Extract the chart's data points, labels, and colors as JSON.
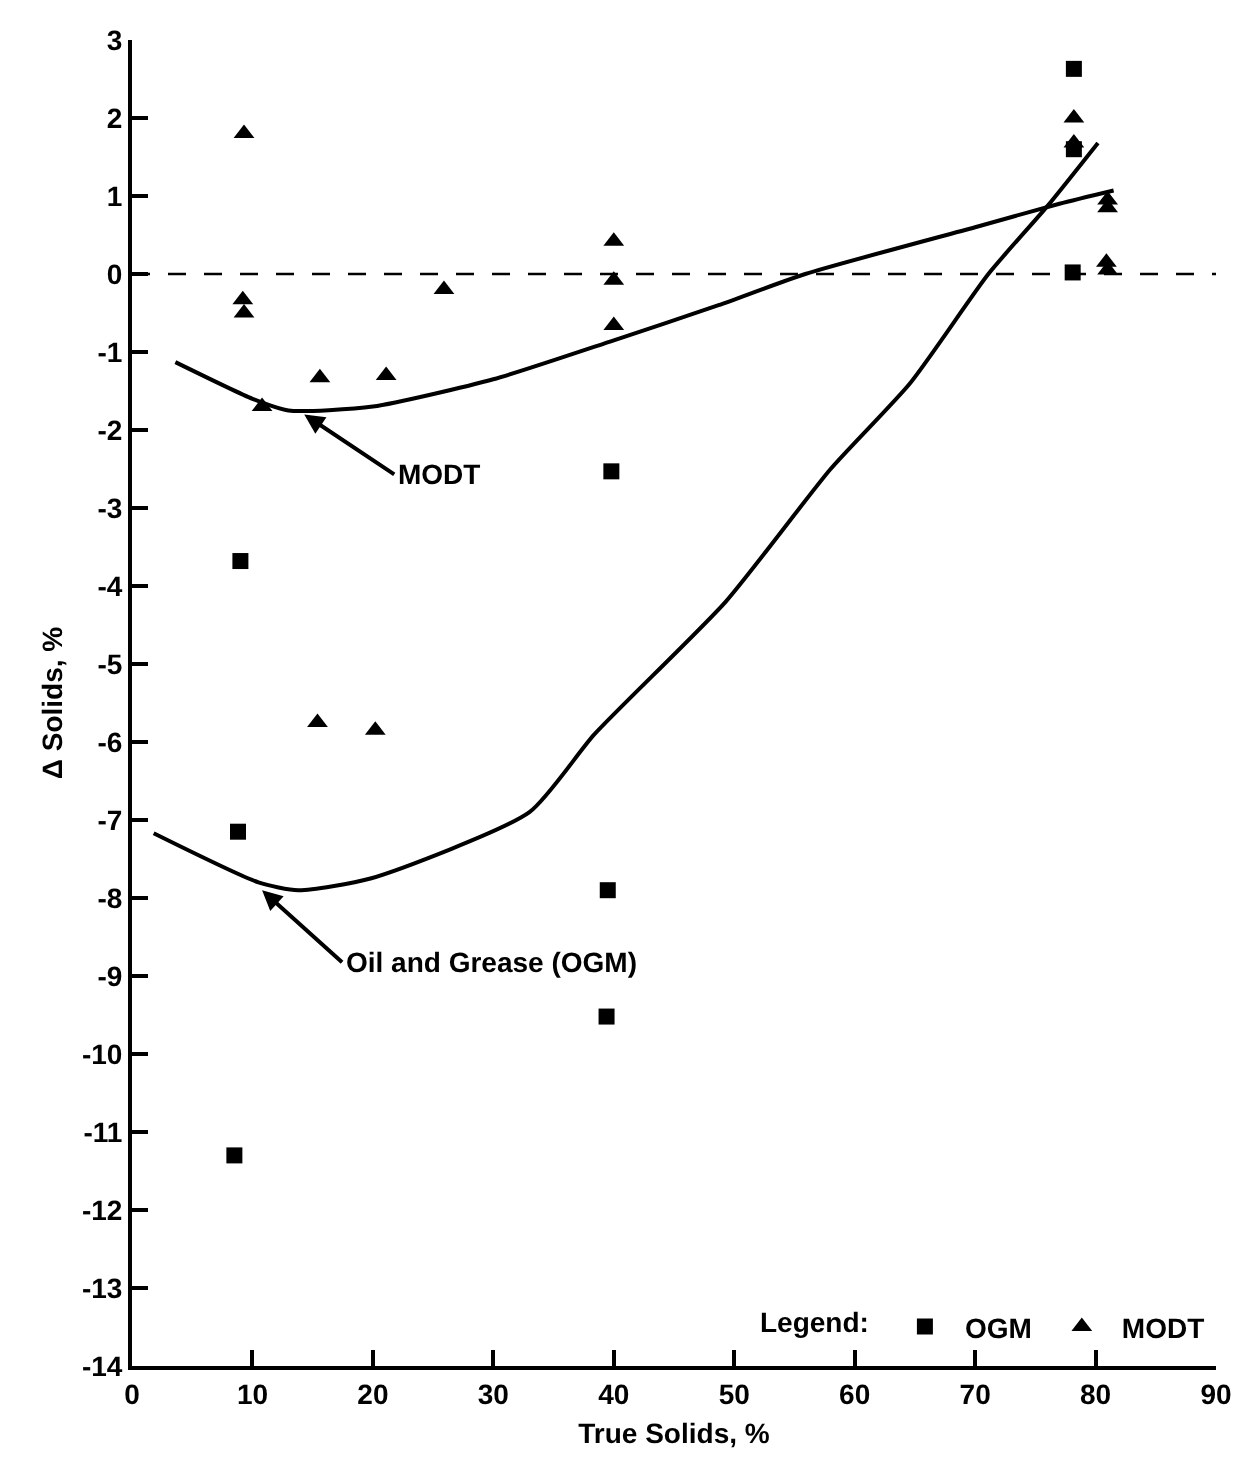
{
  "chart_data": {
    "type": "scatter",
    "xlabel": "True Solids, %",
    "ylabel": "Δ Solids, %",
    "legend_title": "Legend:",
    "legend": "bottom right",
    "grid": false,
    "xlim": [
      0,
      90
    ],
    "xticks": [
      0,
      10,
      20,
      30,
      40,
      50,
      60,
      70,
      80,
      90
    ],
    "ylim": [
      -14,
      3
    ],
    "yticks": [
      3,
      2,
      1,
      0,
      -1,
      -2,
      -3,
      -4,
      -5,
      -6,
      -7,
      -8,
      -9,
      -10,
      -11,
      -12,
      -13,
      -14
    ],
    "series": [
      {
        "name": "OGM",
        "marker": "square",
        "color": "#000000",
        "x": [
          9,
          8.8,
          8.5,
          39.8,
          39.5,
          39.4,
          78.2,
          78.2,
          78.1
        ],
        "values": [
          -3.68,
          -7.15,
          -11.3,
          -2.53,
          -7.9,
          -9.52,
          2.63,
          1.6,
          0.02
        ]
      },
      {
        "name": "MODT",
        "marker": "triangle",
        "color": "#000000",
        "x": [
          9.3,
          9.2,
          9.3,
          10.8,
          15.6,
          21.1,
          25.9,
          40,
          40,
          40,
          15.4,
          20.2,
          78.2,
          78.2,
          81,
          81,
          80.9,
          81
        ],
        "values": [
          1.8,
          -0.33,
          -0.5,
          -1.7,
          -1.33,
          -1.3,
          -0.2,
          0.42,
          -0.08,
          -0.66,
          -5.75,
          -5.85,
          2.0,
          1.68,
          0.95,
          0.85,
          0.15,
          0.05
        ]
      },
      {
        "type": "line",
        "marker": "none",
        "line_style": "solid",
        "color": "#000000",
        "x": [
          3.6,
          10,
          13,
          20,
          30,
          40,
          48.7,
          55.9,
          70,
          77,
          81.5
        ],
        "values": [
          -1.13,
          -1.6,
          -1.75,
          -1.7,
          -1.35,
          -0.85,
          -0.4,
          0,
          0.6,
          0.9,
          1.07
        ]
      },
      {
        "type": "line",
        "marker": "none",
        "line_style": "solid",
        "color": "#000000",
        "x": [
          1.8,
          10.5,
          13.8,
          19.8,
          33,
          38.4,
          49.3,
          58,
          64.6,
          71.1,
          76,
          80.2
        ],
        "values": [
          -7.17,
          -7.8,
          -7.9,
          -7.75,
          -6.9,
          -5.9,
          -4.2,
          -2.5,
          -1.4,
          0,
          0.87,
          1.68
        ]
      }
    ],
    "ref_lines": [
      {
        "axis": "y",
        "value": 0,
        "color": "#000000",
        "line_style": "dashed"
      }
    ],
    "annotations": [
      {
        "text": "MODT",
        "x": 14.3,
        "y": -1.8
      },
      {
        "text": "Oil and Grease (OGM)",
        "x": 10.8,
        "y": -7.9
      }
    ]
  }
}
